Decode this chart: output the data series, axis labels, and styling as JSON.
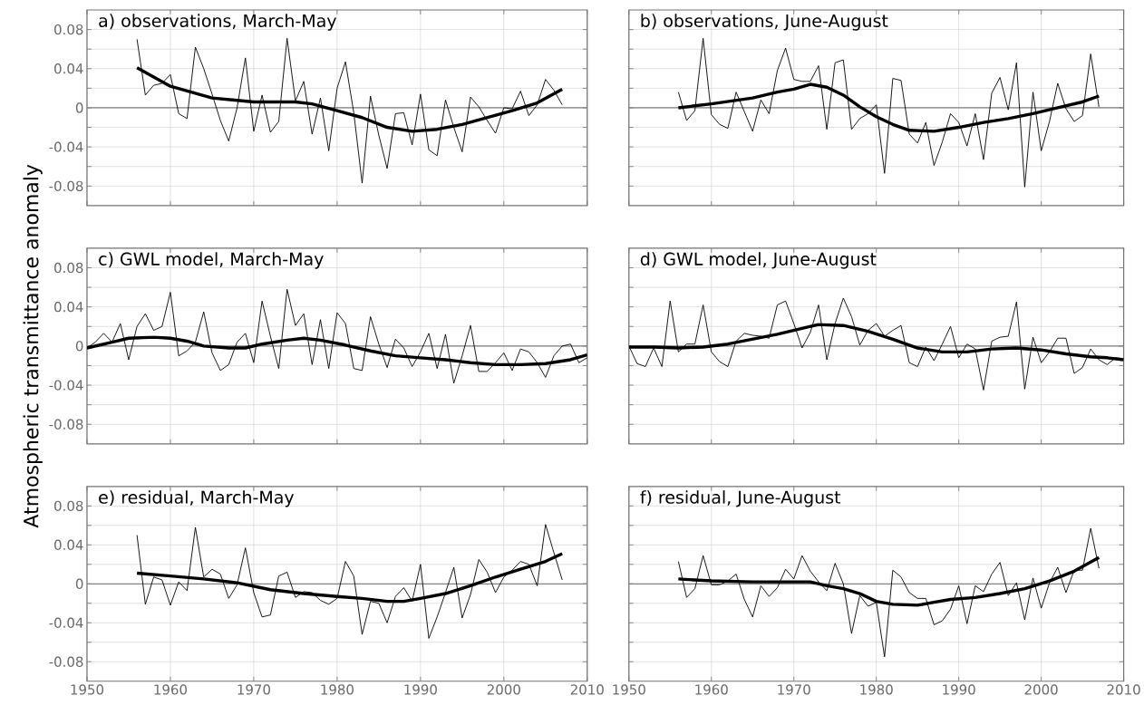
{
  "chart_data": [
    {
      "type": "line",
      "title": "a) observations, March-May",
      "xlim": [
        1950,
        2010
      ],
      "ylim": [
        -0.1,
        0.1
      ],
      "xticks": [
        1950,
        1960,
        1970,
        1980,
        1990,
        2000,
        2010
      ],
      "yticks": [
        -0.08,
        {
          "value": -0.06,
          "label": null
        },
        -0.04,
        {
          "value": -0.02,
          "label": null
        },
        0,
        {
          "value": 0.02,
          "label": null
        },
        0.04,
        {
          "value": 0.06,
          "label": null
        },
        0.08
      ],
      "grid": true,
      "tick_labels": "y",
      "ref_lines": [
        {
          "axis": "y",
          "value": 0,
          "color": "#808080"
        }
      ],
      "series": [
        {
          "color": "#000000",
          "x": [
            1956,
            1957,
            1958,
            1959,
            1960,
            1961,
            1962,
            1963,
            1964,
            1965,
            1966,
            1967,
            1968,
            1969,
            1970,
            1971,
            1972,
            1973,
            1974,
            1975,
            1976,
            1977,
            1978,
            1979,
            1980,
            1981,
            1982,
            1983,
            1984,
            1985,
            1986,
            1987,
            1988,
            1989,
            1990,
            1991,
            1992,
            1993,
            1994,
            1995,
            1996,
            1997,
            1998,
            1999,
            2000,
            2001,
            2002,
            2003,
            2004,
            2005,
            2006,
            2007
          ],
          "values": [
            0.07,
            0.013,
            0.023,
            0.025,
            0.034,
            -0.006,
            -0.011,
            0.062,
            0.04,
            0.014,
            -0.013,
            -0.034,
            0.0,
            0.051,
            -0.024,
            0.013,
            -0.025,
            -0.014,
            0.071,
            0.007,
            0.027,
            -0.027,
            0.01,
            -0.044,
            0.02,
            0.047,
            -0.005,
            -0.077,
            0.012,
            -0.028,
            -0.062,
            -0.006,
            -0.005,
            -0.038,
            0.014,
            -0.043,
            -0.049,
            0.008,
            -0.02,
            -0.045,
            0.011,
            0.001,
            -0.013,
            -0.026,
            0.0,
            -0.001,
            0.017,
            -0.008,
            0.003,
            0.029,
            0.018,
            0.003
          ]
        },
        {
          "color": "#000000",
          "x": [
            1956,
            1960,
            1965,
            1970,
            1975,
            1977,
            1980,
            1983,
            1986,
            1989,
            1992,
            1995,
            1998,
            2001,
            2004,
            2007
          ],
          "values": [
            0.041,
            0.022,
            0.01,
            0.006,
            0.006,
            0.004,
            -0.003,
            -0.01,
            -0.02,
            -0.024,
            -0.022,
            -0.017,
            -0.01,
            -0.003,
            0.005,
            0.019
          ]
        }
      ]
    },
    {
      "type": "line",
      "title": "b) observations, June-August",
      "xlim": [
        1950,
        2010
      ],
      "ylim": [
        -0.1,
        0.1
      ],
      "xticks": [
        1950,
        1960,
        1970,
        1980,
        1990,
        2000,
        2010
      ],
      "yticks": [
        -0.08,
        {
          "value": -0.06,
          "label": null
        },
        -0.04,
        {
          "value": -0.02,
          "label": null
        },
        0,
        {
          "value": 0.02,
          "label": null
        },
        0.04,
        {
          "value": 0.06,
          "label": null
        },
        0.08
      ],
      "grid": true,
      "tick_labels": false,
      "ref_lines": [
        {
          "axis": "y",
          "value": 0,
          "color": "#808080"
        }
      ],
      "series": [
        {
          "color": "#000000",
          "x": [
            1956,
            1957,
            1958,
            1959,
            1960,
            1961,
            1962,
            1963,
            1964,
            1965,
            1966,
            1967,
            1968,
            1969,
            1970,
            1971,
            1972,
            1973,
            1974,
            1975,
            1976,
            1977,
            1978,
            1979,
            1980,
            1981,
            1982,
            1983,
            1984,
            1985,
            1986,
            1987,
            1988,
            1989,
            1990,
            1991,
            1992,
            1993,
            1994,
            1995,
            1996,
            1997,
            1998,
            1999,
            2000,
            2001,
            2002,
            2003,
            2004,
            2005,
            2006,
            2007
          ],
          "values": [
            0.016,
            -0.013,
            -0.003,
            0.071,
            -0.007,
            -0.017,
            -0.021,
            0.016,
            -0.004,
            -0.024,
            0.008,
            -0.006,
            0.038,
            0.061,
            0.029,
            0.027,
            0.027,
            0.043,
            -0.022,
            0.046,
            0.049,
            -0.022,
            -0.011,
            -0.006,
            0.003,
            -0.067,
            0.03,
            0.028,
            -0.027,
            -0.036,
            -0.015,
            -0.059,
            -0.035,
            -0.006,
            -0.015,
            -0.039,
            -0.006,
            -0.053,
            0.015,
            0.031,
            -0.002,
            0.046,
            -0.081,
            0.016,
            -0.044,
            -0.014,
            0.025,
            -0.001,
            -0.014,
            -0.008,
            0.055,
            0.001
          ]
        },
        {
          "color": "#000000",
          "x": [
            1956,
            1960,
            1965,
            1968,
            1970,
            1972,
            1974,
            1976,
            1978,
            1980,
            1982,
            1984,
            1987,
            1990,
            1993,
            1996,
            1999,
            2002,
            2005,
            2007
          ],
          "values": [
            0.0,
            0.004,
            0.01,
            0.016,
            0.019,
            0.024,
            0.021,
            0.013,
            0.001,
            -0.009,
            -0.017,
            -0.023,
            -0.024,
            -0.02,
            -0.015,
            -0.011,
            -0.006,
            0.0,
            0.006,
            0.012
          ]
        }
      ]
    },
    {
      "type": "line",
      "title": "c) GWL model, March-May",
      "ylabel": "Atmospheric transmittance anomaly",
      "xlim": [
        1950,
        2010
      ],
      "ylim": [
        -0.1,
        0.1
      ],
      "xticks": [
        1950,
        1960,
        1970,
        1980,
        1990,
        2000,
        2010
      ],
      "yticks": [
        -0.08,
        {
          "value": -0.06,
          "label": null
        },
        -0.04,
        {
          "value": -0.02,
          "label": null
        },
        0,
        {
          "value": 0.02,
          "label": null
        },
        0.04,
        {
          "value": 0.06,
          "label": null
        },
        0.08
      ],
      "grid": true,
      "tick_labels": "y",
      "ref_lines": [
        {
          "axis": "y",
          "value": 0,
          "color": "#808080"
        }
      ],
      "series": [
        {
          "color": "#000000",
          "x": [
            1950,
            1951,
            1952,
            1953,
            1954,
            1955,
            1956,
            1957,
            1958,
            1959,
            1960,
            1961,
            1962,
            1963,
            1964,
            1965,
            1966,
            1967,
            1968,
            1969,
            1970,
            1971,
            1972,
            1973,
            1974,
            1975,
            1976,
            1977,
            1978,
            1979,
            1980,
            1981,
            1982,
            1983,
            1984,
            1985,
            1986,
            1987,
            1988,
            1989,
            1990,
            1991,
            1992,
            1993,
            1994,
            1995,
            1996,
            1997,
            1998,
            1999,
            2000,
            2001,
            2002,
            2003,
            2004,
            2005,
            2006,
            2007,
            2008,
            2009,
            2010
          ],
          "values": [
            -0.002,
            0.004,
            0.013,
            0.004,
            0.023,
            -0.014,
            0.02,
            0.033,
            0.016,
            0.02,
            0.055,
            -0.01,
            -0.005,
            0.004,
            0.035,
            -0.007,
            -0.025,
            -0.019,
            0.004,
            0.013,
            -0.017,
            0.046,
            0.01,
            -0.023,
            0.058,
            0.021,
            0.033,
            -0.019,
            0.027,
            -0.023,
            0.034,
            0.023,
            -0.023,
            -0.025,
            0.03,
            0.002,
            -0.022,
            0.007,
            -0.002,
            -0.021,
            -0.006,
            0.013,
            -0.023,
            0.012,
            -0.038,
            -0.01,
            0.021,
            -0.026,
            -0.026,
            -0.017,
            -0.007,
            -0.025,
            -0.003,
            -0.006,
            -0.017,
            -0.032,
            -0.01,
            0.0,
            0.002,
            -0.017,
            -0.012
          ]
        },
        {
          "color": "#000000",
          "x": [
            1950,
            1953,
            1955,
            1958,
            1960,
            1962,
            1964,
            1967,
            1969,
            1971,
            1974,
            1976,
            1978,
            1981,
            1984,
            1987,
            1990,
            1993,
            1996,
            1999,
            2002,
            2005,
            2008,
            2010
          ],
          "values": [
            -0.002,
            0.004,
            0.008,
            0.009,
            0.008,
            0.005,
            0.0,
            -0.002,
            -0.002,
            0.002,
            0.006,
            0.008,
            0.006,
            0.001,
            -0.005,
            -0.01,
            -0.012,
            -0.014,
            -0.017,
            -0.019,
            -0.019,
            -0.018,
            -0.014,
            -0.009
          ]
        }
      ]
    },
    {
      "type": "line",
      "title": "d) GWL model, June-August",
      "xlim": [
        1950,
        2010
      ],
      "ylim": [
        -0.1,
        0.1
      ],
      "xticks": [
        1950,
        1960,
        1970,
        1980,
        1990,
        2000,
        2010
      ],
      "yticks": [
        -0.08,
        {
          "value": -0.06,
          "label": null
        },
        -0.04,
        {
          "value": -0.02,
          "label": null
        },
        0,
        {
          "value": 0.02,
          "label": null
        },
        0.04,
        {
          "value": 0.06,
          "label": null
        },
        0.08
      ],
      "grid": true,
      "tick_labels": false,
      "ref_lines": [
        {
          "axis": "y",
          "value": 0,
          "color": "#808080"
        }
      ],
      "series": [
        {
          "color": "#000000",
          "x": [
            1950,
            1951,
            1952,
            1953,
            1954,
            1955,
            1956,
            1957,
            1958,
            1959,
            1960,
            1961,
            1962,
            1963,
            1964,
            1965,
            1966,
            1967,
            1968,
            1969,
            1970,
            1971,
            1972,
            1973,
            1974,
            1975,
            1976,
            1977,
            1978,
            1979,
            1980,
            1981,
            1982,
            1983,
            1984,
            1985,
            1986,
            1987,
            1988,
            1989,
            1990,
            1991,
            1992,
            1993,
            1994,
            1995,
            1996,
            1997,
            1998,
            1999,
            2000,
            2001,
            2002,
            2003,
            2004,
            2005,
            2006,
            2007,
            2008,
            2009,
            2010
          ],
          "values": [
            0.0,
            -0.018,
            -0.021,
            -0.002,
            -0.021,
            0.046,
            -0.006,
            0.002,
            0.002,
            0.042,
            -0.006,
            -0.016,
            -0.021,
            0.005,
            0.013,
            0.011,
            0.01,
            0.008,
            0.042,
            0.046,
            0.023,
            -0.002,
            0.014,
            0.042,
            -0.014,
            0.023,
            0.049,
            0.03,
            0.001,
            0.016,
            0.023,
            0.01,
            0.016,
            0.021,
            -0.017,
            -0.021,
            -0.001,
            -0.015,
            0.002,
            0.02,
            -0.012,
            0.002,
            -0.003,
            -0.045,
            0.005,
            0.009,
            0.01,
            0.045,
            -0.044,
            0.009,
            -0.017,
            -0.006,
            0.008,
            0.008,
            -0.028,
            -0.022,
            -0.003,
            -0.014,
            -0.019,
            -0.012,
            -0.013
          ]
        },
        {
          "color": "#000000",
          "x": [
            1950,
            1953,
            1956,
            1959,
            1962,
            1965,
            1968,
            1971,
            1973,
            1976,
            1979,
            1982,
            1985,
            1988,
            1991,
            1994,
            1997,
            2000,
            2003,
            2006,
            2008,
            2010
          ],
          "values": [
            -0.001,
            -0.001,
            -0.002,
            -0.001,
            0.002,
            0.007,
            0.012,
            0.018,
            0.022,
            0.021,
            0.015,
            0.007,
            -0.002,
            -0.006,
            -0.006,
            -0.003,
            -0.002,
            -0.004,
            -0.008,
            -0.011,
            -0.012,
            -0.014
          ]
        }
      ]
    },
    {
      "type": "line",
      "title": "e) residual, March-May",
      "xlim": [
        1950,
        2010
      ],
      "ylim": [
        -0.1,
        0.1
      ],
      "xticks": [
        1950,
        1960,
        1970,
        1980,
        1990,
        2000,
        2010
      ],
      "yticks": [
        -0.08,
        {
          "value": -0.06,
          "label": null
        },
        -0.04,
        {
          "value": -0.02,
          "label": null
        },
        0,
        {
          "value": 0.02,
          "label": null
        },
        0.04,
        {
          "value": 0.06,
          "label": null
        },
        0.08
      ],
      "grid": true,
      "ref_lines": [
        {
          "axis": "y",
          "value": 0,
          "color": "#808080"
        }
      ],
      "series": [
        {
          "color": "#000000",
          "x": [
            1956,
            1957,
            1958,
            1959,
            1960,
            1961,
            1962,
            1963,
            1964,
            1965,
            1966,
            1967,
            1968,
            1969,
            1970,
            1971,
            1972,
            1973,
            1974,
            1975,
            1976,
            1977,
            1978,
            1979,
            1980,
            1981,
            1982,
            1983,
            1984,
            1985,
            1986,
            1987,
            1988,
            1989,
            1990,
            1991,
            1992,
            1993,
            1994,
            1995,
            1996,
            1997,
            1998,
            1999,
            2000,
            2001,
            2002,
            2003,
            2004,
            2005,
            2006,
            2007
          ],
          "values": [
            0.05,
            -0.021,
            0.007,
            0.004,
            -0.022,
            0.002,
            -0.007,
            0.058,
            0.007,
            0.015,
            0.01,
            -0.015,
            -0.001,
            0.037,
            -0.009,
            -0.034,
            -0.032,
            0.008,
            0.012,
            -0.014,
            -0.008,
            -0.009,
            -0.017,
            -0.021,
            -0.015,
            0.023,
            0.008,
            -0.052,
            -0.018,
            -0.02,
            -0.04,
            -0.013,
            -0.004,
            -0.018,
            0.02,
            -0.056,
            -0.034,
            -0.009,
            0.017,
            -0.035,
            -0.011,
            0.025,
            0.012,
            -0.009,
            0.007,
            0.014,
            0.023,
            0.02,
            -0.002,
            0.061,
            0.032,
            0.004
          ]
        },
        {
          "color": "#000000",
          "x": [
            1956,
            1960,
            1964,
            1968,
            1972,
            1976,
            1980,
            1983,
            1986,
            1988,
            1990,
            1993,
            1996,
            1999,
            2002,
            2005,
            2007
          ],
          "values": [
            0.011,
            0.008,
            0.005,
            0.001,
            -0.006,
            -0.01,
            -0.013,
            -0.015,
            -0.018,
            -0.018,
            -0.015,
            -0.01,
            -0.002,
            0.007,
            0.015,
            0.023,
            0.031
          ]
        }
      ]
    },
    {
      "type": "line",
      "title": "f) residual, June-August",
      "xlim": [
        1950,
        2010
      ],
      "ylim": [
        -0.1,
        0.1
      ],
      "xticks": [
        1950,
        1960,
        1970,
        1980,
        1990,
        2000,
        2010
      ],
      "yticks": [
        -0.08,
        {
          "value": -0.06,
          "label": null
        },
        -0.04,
        {
          "value": -0.02,
          "label": null
        },
        0,
        {
          "value": 0.02,
          "label": null
        },
        0.04,
        {
          "value": 0.06,
          "label": null
        },
        0.08
      ],
      "grid": true,
      "tick_labels": "x",
      "ref_lines": [
        {
          "axis": "y",
          "value": 0,
          "color": "#808080"
        }
      ],
      "series": [
        {
          "color": "#000000",
          "x": [
            1956,
            1957,
            1958,
            1959,
            1960,
            1961,
            1962,
            1963,
            1964,
            1965,
            1966,
            1967,
            1968,
            1969,
            1970,
            1971,
            1972,
            1973,
            1974,
            1975,
            1976,
            1977,
            1978,
            1979,
            1980,
            1981,
            1982,
            1983,
            1984,
            1985,
            1986,
            1987,
            1988,
            1989,
            1990,
            1991,
            1992,
            1993,
            1994,
            1995,
            1996,
            1997,
            1998,
            1999,
            2000,
            2001,
            2002,
            2003,
            2004,
            2005,
            2006,
            2007
          ],
          "values": [
            0.023,
            -0.014,
            -0.005,
            0.029,
            -0.001,
            -0.001,
            0.003,
            0.01,
            -0.016,
            -0.034,
            -0.002,
            -0.013,
            -0.004,
            0.015,
            0.005,
            0.029,
            0.013,
            0.002,
            -0.007,
            0.021,
            0.0,
            -0.051,
            -0.012,
            -0.023,
            -0.019,
            -0.075,
            0.014,
            0.007,
            -0.009,
            -0.015,
            -0.015,
            -0.042,
            -0.038,
            -0.026,
            -0.002,
            -0.041,
            -0.002,
            -0.008,
            0.01,
            0.022,
            -0.012,
            0.001,
            -0.037,
            0.006,
            -0.025,
            0.001,
            0.017,
            -0.009,
            0.014,
            0.014,
            0.057,
            0.016
          ]
        },
        {
          "color": "#000000",
          "x": [
            1956,
            1960,
            1965,
            1970,
            1972,
            1974,
            1976,
            1978,
            1980,
            1982,
            1985,
            1987,
            1989,
            1992,
            1995,
            1998,
            2001,
            2004,
            2007
          ],
          "values": [
            0.005,
            0.003,
            0.002,
            0.002,
            0.002,
            -0.002,
            -0.005,
            -0.01,
            -0.018,
            -0.021,
            -0.022,
            -0.019,
            -0.016,
            -0.014,
            -0.01,
            -0.005,
            0.003,
            0.013,
            0.027
          ]
        }
      ]
    }
  ]
}
